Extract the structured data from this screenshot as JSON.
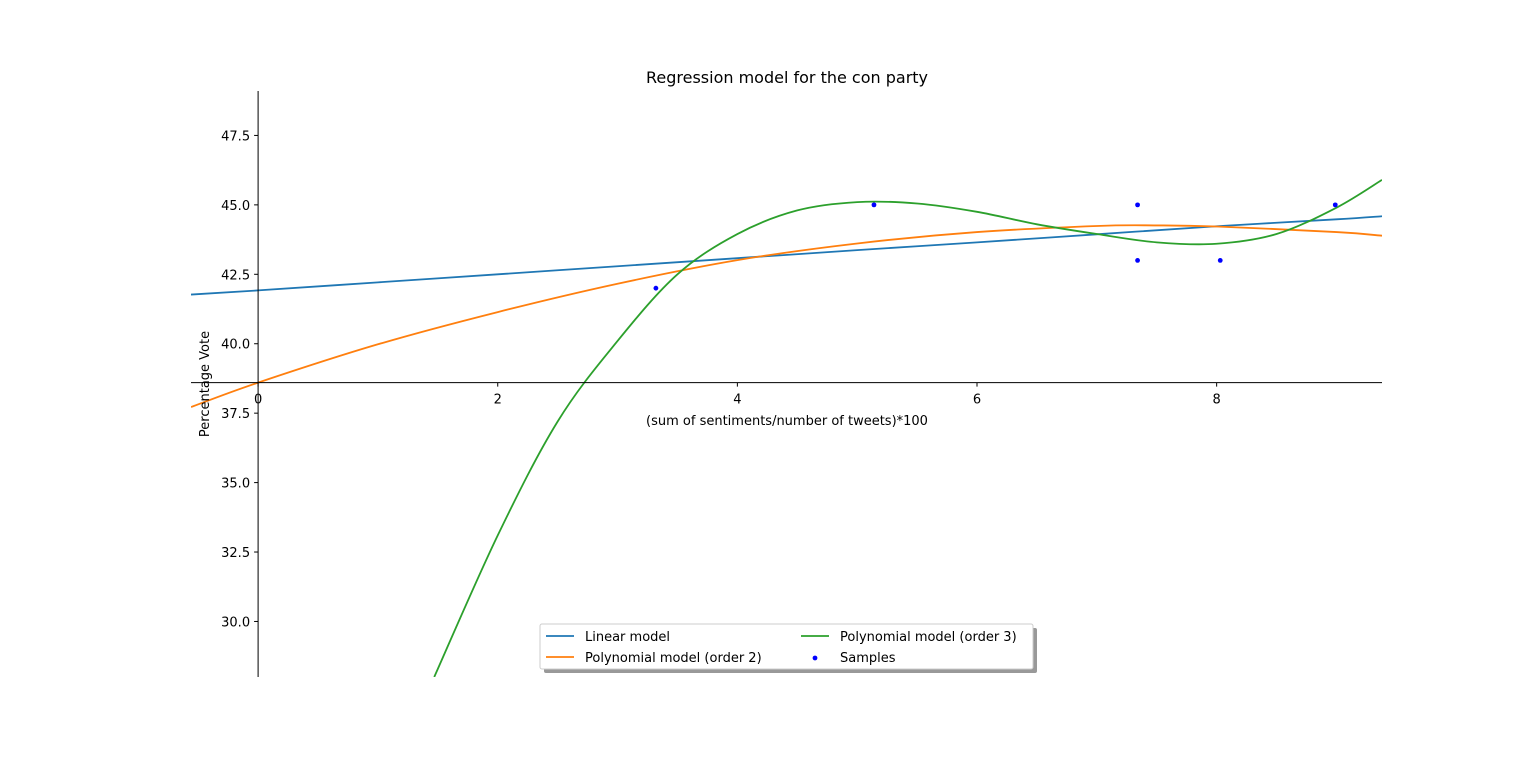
{
  "chart_data": {
    "type": "line",
    "title": "Regression model for the con party",
    "xlabel": "(sum of sentiments/number of tweets)*100",
    "ylabel": "Percentage Vote",
    "xlim": [
      -0.56,
      9.38
    ],
    "ylim": [
      28.0,
      49.1
    ],
    "x_ticks": [
      0,
      2,
      4,
      6,
      8
    ],
    "x_tick_labels": [
      "0",
      "2",
      "4",
      "6",
      "8"
    ],
    "y_ticks": [
      30.0,
      32.5,
      35.0,
      37.5,
      40.0,
      42.5,
      45.0,
      47.5
    ],
    "y_tick_labels": [
      "30.0",
      "32.5",
      "35.0",
      "37.5",
      "40.0",
      "42.5",
      "45.0",
      "47.5"
    ],
    "axes_style": "centered at origin (spines through x=0 and y=38.6)",
    "grid": false,
    "legend_placement": "lower-center",
    "series": [
      {
        "name": "Linear model",
        "kind": "line",
        "color": "#1f77b4",
        "x": [
          -0.56,
          0,
          1,
          2,
          3,
          4,
          5,
          6,
          7,
          8,
          9,
          9.38
        ],
        "y": [
          41.77,
          41.92,
          42.21,
          42.5,
          42.79,
          43.08,
          43.37,
          43.65,
          43.94,
          44.23,
          44.48,
          44.59
        ]
      },
      {
        "name": "Polynomial model (order 2)",
        "kind": "line",
        "color": "#ff7f0e",
        "x": [
          -0.56,
          0,
          1,
          2,
          3,
          4,
          5,
          6,
          7,
          7.5,
          8,
          9,
          9.38
        ],
        "y": [
          37.72,
          38.6,
          39.98,
          41.14,
          42.16,
          43.01,
          43.61,
          44.02,
          44.24,
          44.26,
          44.22,
          44.02,
          43.89
        ]
      },
      {
        "name": "Polynomial model (order 3)",
        "kind": "line",
        "color": "#2ca02c",
        "x": [
          1.47,
          2.0,
          2.5,
          3.0,
          3.5,
          4.0,
          4.5,
          5.0,
          5.5,
          6.0,
          6.5,
          7.0,
          7.5,
          8.0,
          8.5,
          9.0,
          9.38
        ],
        "y": [
          28.0,
          33.1,
          37.2,
          40.1,
          42.5,
          43.95,
          44.8,
          45.1,
          45.05,
          44.75,
          44.3,
          43.95,
          43.65,
          43.6,
          43.95,
          44.9,
          45.9
        ]
      },
      {
        "name": "Samples",
        "kind": "scatter",
        "color": "#0000ff",
        "x": [
          3.32,
          5.14,
          7.34,
          7.34,
          8.03,
          8.99
        ],
        "y": [
          42.0,
          45.0,
          45.0,
          43.0,
          43.0,
          45.0
        ]
      }
    ]
  }
}
